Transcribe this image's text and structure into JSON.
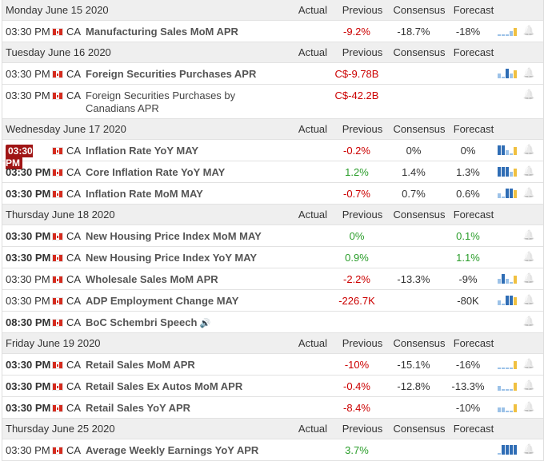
{
  "columns": {
    "actual": "Actual",
    "previous": "Previous",
    "consensus": "Consensus",
    "forecast": "Forecast"
  },
  "days": [
    {
      "date": "Monday June 15 2020",
      "events": [
        {
          "time": "03:30 PM",
          "time_style": "normal",
          "country": "CA",
          "event": "Manufacturing Sales MoM APR",
          "actual": "",
          "previous": "-9.2%",
          "prev_color": "red",
          "consensus": "-18.7%",
          "forecast": "-18%",
          "fc_color": "",
          "spark": [
            "dash",
            "dash",
            "dash",
            "lt",
            "yl"
          ],
          "tall": false,
          "bold_event": true,
          "speech": false
        }
      ]
    },
    {
      "date": "Tuesday June 16 2020",
      "events": [
        {
          "time": "03:30 PM",
          "time_style": "normal",
          "country": "CA",
          "event": "Foreign Securities Purchases APR",
          "actual": "",
          "previous": "C$-9.78B",
          "prev_color": "red",
          "consensus": "",
          "forecast": "",
          "fc_color": "",
          "spark": [
            "lt",
            "dash",
            "d",
            "lt",
            "yl"
          ],
          "tall": false,
          "bold_event": true,
          "speech": false
        },
        {
          "time": "03:30 PM",
          "time_style": "normal",
          "country": "CA",
          "event": "Foreign Securities Purchases by Canadians APR",
          "actual": "",
          "previous": "C$-42.2B",
          "prev_color": "red",
          "consensus": "",
          "forecast": "",
          "fc_color": "",
          "spark": [],
          "tall": true,
          "bold_event": false,
          "speech": false
        }
      ]
    },
    {
      "date": "Wednesday June 17 2020",
      "events": [
        {
          "time": "03:30 PM",
          "time_style": "badge",
          "country": "CA",
          "event": "Inflation Rate YoY MAY",
          "actual": "",
          "previous": "-0.2%",
          "prev_color": "red",
          "consensus": "0%",
          "forecast": "0%",
          "fc_color": "",
          "spark": [
            "d",
            "d",
            "lt",
            "dash",
            "yl"
          ],
          "tall": false,
          "bold_event": true,
          "speech": false
        },
        {
          "time": "03:30 PM",
          "time_style": "bold",
          "country": "CA",
          "event": "Core Inflation Rate YoY MAY",
          "actual": "",
          "previous": "1.2%",
          "prev_color": "green",
          "consensus": "1.4%",
          "forecast": "1.3%",
          "fc_color": "",
          "spark": [
            "d",
            "d",
            "d",
            "lt",
            "yl"
          ],
          "tall": false,
          "bold_event": true,
          "speech": false
        },
        {
          "time": "03:30 PM",
          "time_style": "bold",
          "country": "CA",
          "event": "Inflation Rate MoM MAY",
          "actual": "",
          "previous": "-0.7%",
          "prev_color": "red",
          "consensus": "0.7%",
          "forecast": "0.6%",
          "fc_color": "",
          "spark": [
            "lt",
            "dash",
            "d",
            "d",
            "yl"
          ],
          "tall": false,
          "bold_event": true,
          "speech": false
        }
      ]
    },
    {
      "date": "Thursday June 18 2020",
      "events": [
        {
          "time": "03:30 PM",
          "time_style": "bold",
          "country": "CA",
          "event": "New Housing Price Index MoM MAY",
          "actual": "",
          "previous": "0%",
          "prev_color": "green",
          "consensus": "",
          "forecast": "0.1%",
          "fc_color": "green",
          "spark": [],
          "tall": false,
          "bold_event": true,
          "speech": false
        },
        {
          "time": "03:30 PM",
          "time_style": "bold",
          "country": "CA",
          "event": "New Housing Price Index YoY MAY",
          "actual": "",
          "previous": "0.9%",
          "prev_color": "green",
          "consensus": "",
          "forecast": "1.1%",
          "fc_color": "green",
          "spark": [],
          "tall": false,
          "bold_event": true,
          "speech": false
        },
        {
          "time": "03:30 PM",
          "time_style": "normal",
          "country": "CA",
          "event": "Wholesale Sales MoM APR",
          "actual": "",
          "previous": "-2.2%",
          "prev_color": "red",
          "consensus": "-13.3%",
          "forecast": "-9%",
          "fc_color": "",
          "spark": [
            "lt",
            "d",
            "lt",
            "dash",
            "yl"
          ],
          "tall": false,
          "bold_event": true,
          "speech": false
        },
        {
          "time": "03:30 PM",
          "time_style": "normal",
          "country": "CA",
          "event": "ADP Employment Change MAY",
          "actual": "",
          "previous": "-226.7K",
          "prev_color": "red",
          "consensus": "",
          "forecast": "-80K",
          "fc_color": "",
          "spark": [
            "lt",
            "dash",
            "d",
            "d",
            "yl"
          ],
          "tall": false,
          "bold_event": true,
          "speech": false
        },
        {
          "time": "08:30 PM",
          "time_style": "bold",
          "country": "CA",
          "event": "BoC Schembri Speech",
          "actual": "",
          "previous": "",
          "prev_color": "",
          "consensus": "",
          "forecast": "",
          "fc_color": "",
          "spark": [],
          "tall": false,
          "bold_event": true,
          "speech": true
        }
      ]
    },
    {
      "date": "Friday June 19 2020",
      "events": [
        {
          "time": "03:30 PM",
          "time_style": "bold",
          "country": "CA",
          "event": "Retail Sales MoM APR",
          "actual": "",
          "previous": "-10%",
          "prev_color": "red",
          "consensus": "-15.1%",
          "forecast": "-16%",
          "fc_color": "",
          "spark": [
            "dash",
            "dash",
            "dash",
            "dash",
            "yl"
          ],
          "tall": false,
          "bold_event": true,
          "speech": false
        },
        {
          "time": "03:30 PM",
          "time_style": "bold",
          "country": "CA",
          "event": "Retail Sales Ex Autos MoM APR",
          "actual": "",
          "previous": "-0.4%",
          "prev_color": "red",
          "consensus": "-12.8%",
          "forecast": "-13.3%",
          "fc_color": "",
          "spark": [
            "lt",
            "dash",
            "dash",
            "dash",
            "yl"
          ],
          "tall": false,
          "bold_event": true,
          "speech": false
        },
        {
          "time": "03:30 PM",
          "time_style": "bold",
          "country": "CA",
          "event": "Retail Sales YoY APR",
          "actual": "",
          "previous": "-8.4%",
          "prev_color": "red",
          "consensus": "",
          "forecast": "-10%",
          "fc_color": "",
          "spark": [
            "lt",
            "lt",
            "dash",
            "dash",
            "yl"
          ],
          "tall": false,
          "bold_event": true,
          "speech": false
        }
      ]
    },
    {
      "date": "Thursday June 25 2020",
      "events": [
        {
          "time": "03:30 PM",
          "time_style": "normal",
          "country": "CA",
          "event": "Average Weekly Earnings YoY APR",
          "actual": "",
          "previous": "3.7%",
          "prev_color": "green",
          "consensus": "",
          "forecast": "",
          "fc_color": "",
          "spark": [
            "dash",
            "d",
            "d",
            "d",
            "d"
          ],
          "tall": false,
          "bold_event": true,
          "speech": false
        }
      ]
    }
  ]
}
